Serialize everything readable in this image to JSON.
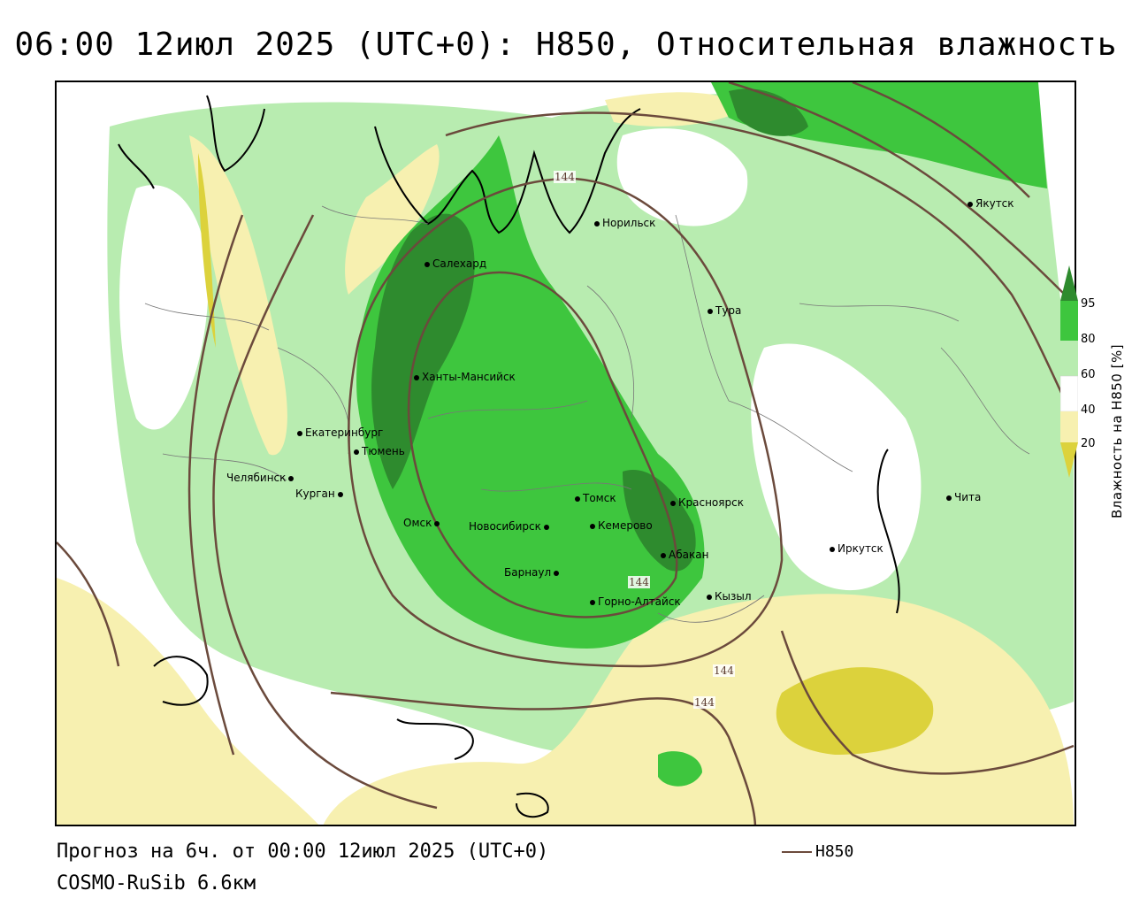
{
  "title": "06:00 12июл 2025 (UTC+0): H850, Относительная влажность",
  "footer": {
    "forecast": "Прогноз на 6ч. от 00:00 12июл 2025 (UTC+0)",
    "model": "COSMO-RuSib 6.6км",
    "contour_legend": "H850"
  },
  "colorbar": {
    "label": "Влажность на H850 [%]",
    "ticks": [
      "95",
      "80",
      "60",
      "40",
      "20"
    ],
    "colors": {
      "above95": "#2e8b2e",
      "80_95": "#3ec63e",
      "60_80": "#b8ecb0",
      "40_60": "#ffffff",
      "20_40": "#f7f0b0",
      "below20": "#dcd23c"
    }
  },
  "contour_color": "#6b4a3c",
  "contour_labels": [
    "144",
    "144",
    "144",
    "144"
  ],
  "cities": [
    {
      "name": "Якутск"
    },
    {
      "name": "Норильск"
    },
    {
      "name": "Салехард"
    },
    {
      "name": "Тура"
    },
    {
      "name": "Ханты-Мансийск"
    },
    {
      "name": "Екатеринбург"
    },
    {
      "name": "Тюмень"
    },
    {
      "name": "Челябинск"
    },
    {
      "name": "Курган"
    },
    {
      "name": "Омск"
    },
    {
      "name": "Томск"
    },
    {
      "name": "Красноярск"
    },
    {
      "name": "Новосибирск"
    },
    {
      "name": "Кемерово"
    },
    {
      "name": "Абакан"
    },
    {
      "name": "Барнаул"
    },
    {
      "name": "Горно-Алтайск"
    },
    {
      "name": "Кызыл"
    },
    {
      "name": "Иркутск"
    },
    {
      "name": "Чита"
    }
  ]
}
